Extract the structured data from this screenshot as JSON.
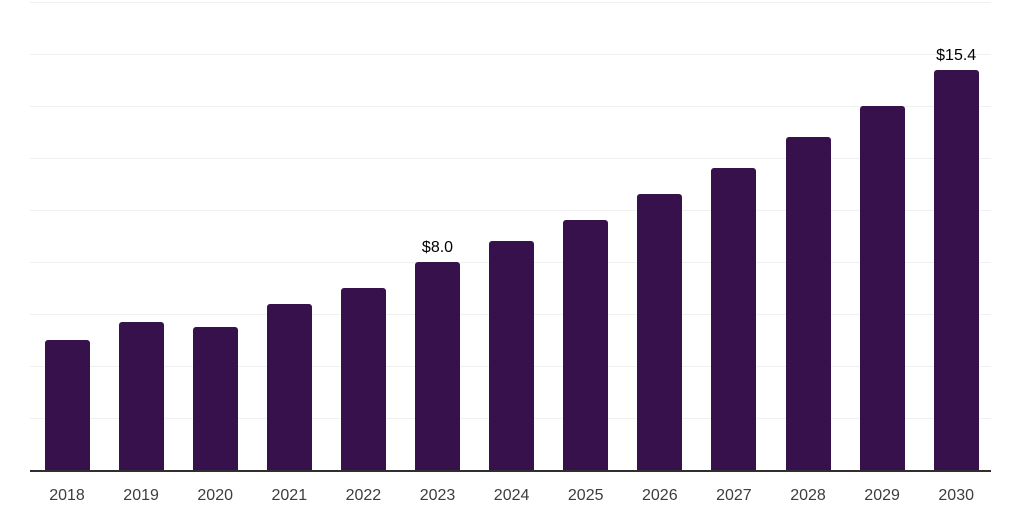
{
  "chart_data": {
    "type": "bar",
    "title": "",
    "xlabel": "",
    "ylabel": "",
    "categories": [
      "2018",
      "2019",
      "2020",
      "2021",
      "2022",
      "2023",
      "2024",
      "2025",
      "2026",
      "2027",
      "2028",
      "2029",
      "2030"
    ],
    "values": [
      5.0,
      5.7,
      5.5,
      6.4,
      7.0,
      8.0,
      8.8,
      9.6,
      10.6,
      11.6,
      12.8,
      14.0,
      15.4
    ],
    "point_labels": [
      "",
      "",
      "",
      "",
      "",
      "$8.0",
      "",
      "",
      "",
      "",
      "",
      "",
      "$15.4"
    ],
    "ylim": [
      0,
      18
    ],
    "gridline_step": 2,
    "grid": true,
    "legend": false,
    "colors": {
      "background": "#ffffff",
      "bar": "#36114b",
      "gridline": "#f0f0f0",
      "axis_line": "#2f2f2f",
      "point_label": "#000000",
      "tick_label": "#3d3d3d"
    }
  }
}
